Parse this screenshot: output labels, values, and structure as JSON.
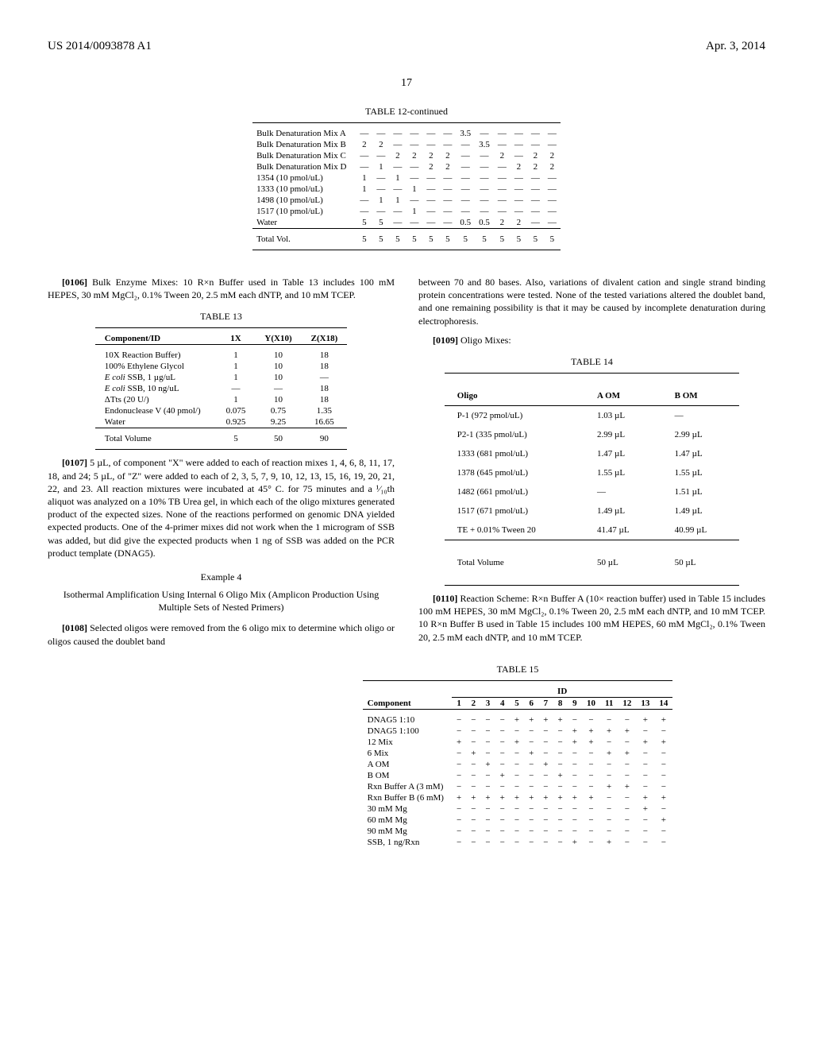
{
  "header": {
    "left": "US 2014/0093878 A1",
    "right": "Apr. 3, 2014"
  },
  "page_number": "17",
  "table12": {
    "caption": "TABLE 12-continued",
    "rows": [
      {
        "label": "Bulk Denaturation Mix A",
        "c": [
          "—",
          "—",
          "—",
          "—",
          "—",
          "—",
          "3.5",
          "—",
          "—",
          "—",
          "—",
          "—"
        ]
      },
      {
        "label": "Bulk Denaturation Mix B",
        "c": [
          "2",
          "2",
          "—",
          "—",
          "—",
          "—",
          "—",
          "3.5",
          "—",
          "—",
          "—",
          "—"
        ]
      },
      {
        "label": "Bulk Denaturation Mix C",
        "c": [
          "—",
          "—",
          "2",
          "2",
          "2",
          "2",
          "—",
          "—",
          "2",
          "—",
          "2",
          "2"
        ]
      },
      {
        "label": "Bulk Denaturation Mix D",
        "c": [
          "—",
          "1",
          "—",
          "—",
          "2",
          "2",
          "—",
          "—",
          "—",
          "2",
          "2",
          "2"
        ]
      },
      {
        "label": "1354 (10 pmol/uL)",
        "c": [
          "1",
          "—",
          "1",
          "—",
          "—",
          "—",
          "—",
          "—",
          "—",
          "—",
          "—",
          "—"
        ]
      },
      {
        "label": "1333 (10 pmol/uL)",
        "c": [
          "1",
          "—",
          "—",
          "1",
          "—",
          "—",
          "—",
          "—",
          "—",
          "—",
          "—",
          "—"
        ]
      },
      {
        "label": "1498 (10 pmol/uL)",
        "c": [
          "—",
          "1",
          "1",
          "—",
          "—",
          "—",
          "—",
          "—",
          "—",
          "—",
          "—",
          "—"
        ]
      },
      {
        "label": "1517 (10 pmol/uL)",
        "c": [
          "—",
          "—",
          "—",
          "1",
          "—",
          "—",
          "—",
          "—",
          "—",
          "—",
          "—",
          "—"
        ]
      },
      {
        "label": "Water",
        "c": [
          "5",
          "5",
          "—",
          "—",
          "—",
          "—",
          "0.5",
          "0.5",
          "2",
          "2",
          "—",
          "—"
        ]
      }
    ],
    "total": {
      "label": "Total Vol.",
      "c": [
        "5",
        "5",
        "5",
        "5",
        "5",
        "5",
        "5",
        "5",
        "5",
        "5",
        "5",
        "5"
      ]
    }
  },
  "p0106": "[0106]",
  "p0106_text": " Bulk Enzyme Mixes: 10 R×n Buffer used in Table 13 includes 100 mM HEPES, 30 mM MgCl₂, 0.1% Tween 20, 2.5 mM each dNTP, and 10 mM TCEP.",
  "table13": {
    "caption": "TABLE 13",
    "header": [
      "Component/ID",
      "1X",
      "Y(X10)",
      "Z(X18)"
    ],
    "rows": [
      {
        "label": "10X Reaction Buffer)",
        "c": [
          "1",
          "10",
          "18"
        ]
      },
      {
        "label": "100% Ethylene Glycol",
        "c": [
          "1",
          "10",
          "18"
        ]
      },
      {
        "label_html": "<span class='ital'>E coli</span> SSB, 1 µg/uL",
        "c": [
          "1",
          "10",
          "—"
        ]
      },
      {
        "label_html": "<span class='ital'>E coli</span> SSB, 10 ng/uL",
        "c": [
          "—",
          "—",
          "18"
        ]
      },
      {
        "label": "ΔTts (20 U/)",
        "c": [
          "1",
          "10",
          "18"
        ]
      },
      {
        "label": "Endonuclease V (40 pmol/)",
        "c": [
          "0.075",
          "0.75",
          "1.35"
        ]
      },
      {
        "label": "Water",
        "c": [
          "0.925",
          "9.25",
          "16.65"
        ]
      }
    ],
    "total": {
      "label": "Total Volume",
      "c": [
        "5",
        "50",
        "90"
      ]
    }
  },
  "p0107": "[0107]",
  "p0107_text": " 5 µL, of component \"X\" were added to each of reaction mixes 1, 4, 6, 8, 11, 17, 18, and 24; 5 µL, of \"Z\" were added to each of 2, 3, 5, 7, 9, 10, 12, 13, 15, 16, 19, 20, 21, 22, and 23. All reaction mixtures were incubated at 45° C. for 75 minutes and a ¹⁄₁₀th aliquot was analyzed on a 10% TB Urea gel, in which each of the oligo mixtures generated product of the expected sizes. None of the reactions performed on genomic DNA yielded expected products. One of the 4-primer mixes did not work when the 1 microgram of SSB was added, but did give the expected products when 1 ng of SSB was added on the PCR product template (DNAG5).",
  "example4_title": "Example 4",
  "example4_sub": "Isothermal Amplification Using Internal 6 Oligo Mix (Amplicon Production Using Multiple Sets of Nested Primers)",
  "p0108": "[0108]",
  "p0108_text": " Selected oligos were removed from the 6 oligo mix to determine which oligo or oligos caused the doublet band",
  "right_top_text": "between 70 and 80 bases. Also, variations of divalent cation and single strand binding protein concentrations were tested. None of the tested variations altered the doublet band, and one remaining possibility is that it may be caused by incomplete denaturation during electrophoresis.",
  "p0109": "[0109]",
  "p0109_text": " Oligo Mixes:",
  "table14": {
    "caption": "TABLE 14",
    "header": [
      "Oligo",
      "A OM",
      "B OM"
    ],
    "rows": [
      {
        "label": "P-1 (972 pmol/uL)",
        "c": [
          "1.03 µL",
          "—"
        ]
      },
      {
        "label": "P2-1 (335 pmol/uL)",
        "c": [
          "2.99 µL",
          "2.99 µL"
        ]
      },
      {
        "label": "1333 (681 pmol/uL)",
        "c": [
          "1.47 µL",
          "1.47 µL"
        ]
      },
      {
        "label": "1378 (645 pmol/uL)",
        "c": [
          "1.55 µL",
          "1.55 µL"
        ]
      },
      {
        "label": "1482 (661 pmol/uL)",
        "c": [
          "—",
          "1.51 µL"
        ]
      },
      {
        "label": "1517 (671 pmol/uL)",
        "c": [
          "1.49 µL",
          "1.49 µL"
        ]
      },
      {
        "label": "TE + 0.01% Tween 20",
        "c": [
          "41.47 µL",
          "40.99 µL"
        ]
      }
    ],
    "total": {
      "label": "Total Volume",
      "c": [
        "50 µL",
        "50 µL"
      ]
    }
  },
  "p0110": "[0110]",
  "p0110_text": " Reaction Scheme: R×n Buffer A (10× reaction buffer) used in Table 15 includes 100 mM HEPES, 30 mM MgCl₂, 0.1% Tween 20, 2.5 mM each dNTP, and 10 mM TCEP. 10 R×n Buffer B used in Table 15 includes 100 mM HEPES, 60 mM MgCl₂, 0.1% Tween 20, 2.5 mM each dNTP, and 10 mM TCEP.",
  "table15": {
    "caption": "TABLE 15",
    "id_header": "ID",
    "cols": [
      "1",
      "2",
      "3",
      "4",
      "5",
      "6",
      "7",
      "8",
      "9",
      "10",
      "11",
      "12",
      "13",
      "14"
    ],
    "comp_header": "Component",
    "rows": [
      {
        "label": "DNAG5 1:10",
        "c": [
          "−",
          "−",
          "−",
          "−",
          "+",
          "+",
          "+",
          "+",
          "−",
          "−",
          "−",
          "−",
          "+",
          "+"
        ]
      },
      {
        "label": "DNAG5 1:100",
        "c": [
          "−",
          "−",
          "−",
          "−",
          "−",
          "−",
          "−",
          "−",
          "+",
          "+",
          "+",
          "+",
          "−",
          "−"
        ]
      },
      {
        "label": "12 Mix",
        "c": [
          "+",
          "−",
          "−",
          "−",
          "+",
          "−",
          "−",
          "−",
          "+",
          "+",
          "−",
          "−",
          "+",
          "+"
        ]
      },
      {
        "label": "6 Mix",
        "c": [
          "−",
          "+",
          "−",
          "−",
          "−",
          "+",
          "−",
          "−",
          "−",
          "−",
          "+",
          "+",
          "−",
          "−"
        ]
      },
      {
        "label": "A OM",
        "c": [
          "−",
          "−",
          "+",
          "−",
          "−",
          "−",
          "+",
          "−",
          "−",
          "−",
          "−",
          "−",
          "−",
          "−"
        ]
      },
      {
        "label": "B OM",
        "c": [
          "−",
          "−",
          "−",
          "+",
          "−",
          "−",
          "−",
          "+",
          "−",
          "−",
          "−",
          "−",
          "−",
          "−"
        ]
      },
      {
        "label": "Rxn Buffer A (3 mM)",
        "c": [
          "−",
          "−",
          "−",
          "−",
          "−",
          "−",
          "−",
          "−",
          "−",
          "−",
          "+",
          "+",
          "−",
          "−"
        ]
      },
      {
        "label": "Rxn Buffer B (6 mM)",
        "c": [
          "+",
          "+",
          "+",
          "+",
          "+",
          "+",
          "+",
          "+",
          "+",
          "+",
          "−",
          "−",
          "+",
          "+"
        ]
      },
      {
        "label": "30 mM Mg",
        "c": [
          "−",
          "−",
          "−",
          "−",
          "−",
          "−",
          "−",
          "−",
          "−",
          "−",
          "−",
          "−",
          "+",
          "−"
        ]
      },
      {
        "label": "60 mM Mg",
        "c": [
          "−",
          "−",
          "−",
          "−",
          "−",
          "−",
          "−",
          "−",
          "−",
          "−",
          "−",
          "−",
          "−",
          "+"
        ]
      },
      {
        "label": "90 mM Mg",
        "c": [
          "−",
          "−",
          "−",
          "−",
          "−",
          "−",
          "−",
          "−",
          "−",
          "−",
          "−",
          "−",
          "−",
          "−"
        ]
      },
      {
        "label": "SSB, 1 ng/Rxn",
        "c": [
          "−",
          "−",
          "−",
          "−",
          "−",
          "−",
          "−",
          "−",
          "+",
          "−",
          "+",
          "−",
          "−",
          "−"
        ]
      }
    ]
  }
}
